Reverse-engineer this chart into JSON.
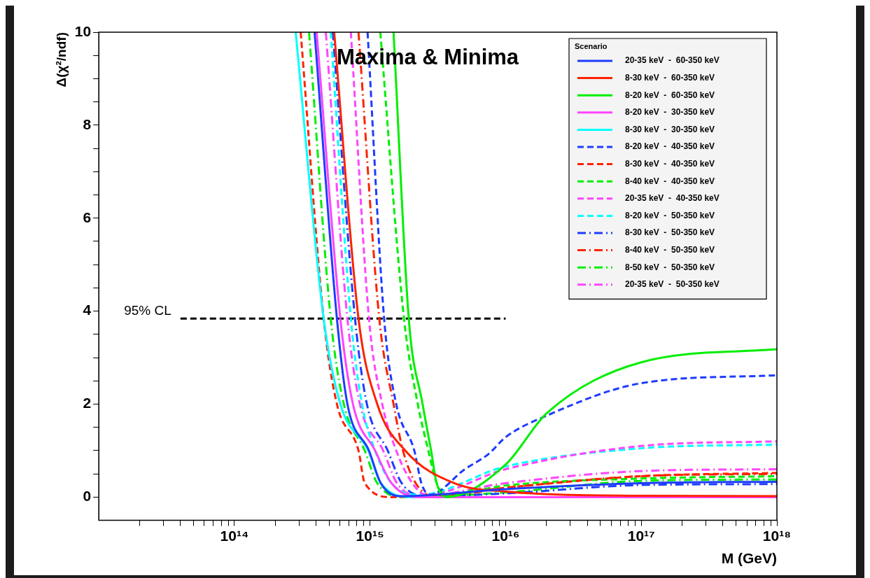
{
  "chart_data": {
    "type": "line",
    "title": "Maxima & Minima",
    "xlabel": "M (GeV)",
    "ylabel": "Δ(χ²/ndf)",
    "legend_title": "Scenario",
    "legend": "top right",
    "log": "x",
    "marker": "none",
    "xlim": [
      10000000000000.0,
      1e+18
    ],
    "xticks": [
      {
        "value": 20000000000000.0,
        "label": null
      },
      {
        "value": 30000000000000.0,
        "label": null
      },
      {
        "value": 40000000000000.0,
        "label": null
      },
      {
        "value": 50000000000000.0,
        "label": null
      },
      {
        "value": 60000000000000.0,
        "label": null
      },
      {
        "value": 70000000000000.0,
        "label": null
      },
      {
        "value": 80000000000000.0,
        "label": null
      },
      {
        "value": 90000000000000.0,
        "label": null
      },
      {
        "value": 100000000000000.0,
        "label": "10¹⁴"
      },
      {
        "value": 200000000000000.0,
        "label": null
      },
      {
        "value": 300000000000000.0,
        "label": null
      },
      {
        "value": 400000000000000.0,
        "label": null
      },
      {
        "value": 500000000000000.0,
        "label": null
      },
      {
        "value": 600000000000000.0,
        "label": null
      },
      {
        "value": 700000000000000.0,
        "label": null
      },
      {
        "value": 800000000000000.0,
        "label": null
      },
      {
        "value": 900000000000000.0,
        "label": null
      },
      {
        "value": 1000000000000000.0,
        "label": "10¹⁵"
      },
      {
        "value": 2000000000000000.0,
        "label": null
      },
      {
        "value": 3000000000000000.0,
        "label": null
      },
      {
        "value": 4000000000000000.0,
        "label": null
      },
      {
        "value": 5000000000000000.0,
        "label": null
      },
      {
        "value": 6000000000000000.0,
        "label": null
      },
      {
        "value": 7000000000000000.0,
        "label": null
      },
      {
        "value": 8000000000000000.0,
        "label": null
      },
      {
        "value": 9000000000000000.0,
        "label": null
      },
      {
        "value": 1e+16,
        "label": "10¹⁶"
      },
      {
        "value": 2e+16,
        "label": null
      },
      {
        "value": 3e+16,
        "label": null
      },
      {
        "value": 4e+16,
        "label": null
      },
      {
        "value": 5e+16,
        "label": null
      },
      {
        "value": 6e+16,
        "label": null
      },
      {
        "value": 7e+16,
        "label": null
      },
      {
        "value": 8e+16,
        "label": null
      },
      {
        "value": 9e+16,
        "label": null
      },
      {
        "value": 1e+17,
        "label": "10¹⁷"
      },
      {
        "value": 2e+17,
        "label": null
      },
      {
        "value": 3e+17,
        "label": null
      },
      {
        "value": 4e+17,
        "label": null
      },
      {
        "value": 5e+17,
        "label": null
      },
      {
        "value": 6e+17,
        "label": null
      },
      {
        "value": 7e+17,
        "label": null
      },
      {
        "value": 8e+17,
        "label": null
      },
      {
        "value": 9e+17,
        "label": null
      },
      {
        "value": 1e+18,
        "label": "10¹⁸"
      }
    ],
    "ylim": [
      -0.5,
      10
    ],
    "yticks": [
      0,
      {
        "value": 0.5,
        "label": null
      },
      {
        "value": 1,
        "label": null
      },
      {
        "value": 1.5,
        "label": null
      },
      2,
      {
        "value": 2.5,
        "label": null
      },
      {
        "value": 3,
        "label": null
      },
      {
        "value": 3.5,
        "label": null
      },
      4,
      {
        "value": 4.5,
        "label": null
      },
      {
        "value": 5,
        "label": null
      },
      {
        "value": 5.5,
        "label": null
      },
      6,
      {
        "value": 6.5,
        "label": null
      },
      {
        "value": 7,
        "label": null
      },
      {
        "value": 7.5,
        "label": null
      },
      8,
      {
        "value": 8.5,
        "label": null
      },
      {
        "value": 9,
        "label": null
      },
      {
        "value": 9.5,
        "label": null
      },
      10
    ],
    "annotations": [
      "95% CL"
    ],
    "series": [
      {
        "name": "20-35 keV  -  60-350 keV",
        "color": "#1e3cff",
        "line_style": "solid",
        "x": [
          390000000000000.0,
          570000000000000.0,
          681000000000000.0,
          982000000000000.0,
          1200000000000000.0,
          1710000000000000.0,
          1e+16,
          1e+17,
          1e+18
        ],
        "values": [
          10,
          3.84,
          2,
          1,
          0.3,
          0.02,
          0.17,
          0.3,
          0.33
        ]
      },
      {
        "name": "8-30 keV  -  60-350 keV",
        "color": "#ff2200",
        "line_style": "solid",
        "x": [
          544000000000000.0,
          822000000000000.0,
          1130000000000000.0,
          1820000000000000.0,
          4170000000000000.0,
          1e+16,
          1e+17,
          1e+18
        ],
        "values": [
          10,
          3.84,
          2,
          1,
          0.3,
          0.12,
          0.03,
          0.02
        ]
      },
      {
        "name": "8-20 keV  -  60-350 keV",
        "color": "#00ee00",
        "line_style": "solid",
        "x": [
          1490000000000000.0,
          1930000000000000.0,
          2440000000000000.0,
          2820000000000000.0,
          3100000000000000.0,
          3670000000000000.0,
          1e+16,
          2e+16,
          1e+17,
          1e+18
        ],
        "values": [
          10,
          3.84,
          2,
          1,
          0.3,
          0,
          0.7,
          1.8,
          2.9,
          3.18
        ]
      },
      {
        "name": "8-20 keV  -  30-350 keV",
        "color": "#ff44ff",
        "line_style": "solid",
        "x": [
          404000000000000.0,
          604000000000000.0,
          748000000000000.0,
          1090000000000000.0,
          1440000000000000.0,
          2300000000000000.0,
          1e+16,
          1e+18
        ],
        "values": [
          10,
          3.84,
          2,
          1,
          0.3,
          0,
          0,
          0
        ]
      },
      {
        "name": "8-30 keV  -  30-350 keV",
        "color": "#00ffff",
        "line_style": "solid",
        "x": [
          283000000000000.0,
          455000000000000.0,
          604000000000000.0,
          971000000000000.0,
          1200000000000000.0,
          2050000000000000.0,
          1e+16,
          1e+18
        ],
        "values": [
          10,
          3.84,
          2,
          1,
          0.3,
          0,
          0,
          0
        ]
      },
      {
        "name": "8-20 keV  -  40-350 keV",
        "color": "#1e3cff",
        "line_style": "dashed",
        "x": [
          959000000000000.0,
          1270000000000000.0,
          1560000000000000.0,
          2120000000000000.0,
          2390000000000000.0,
          2750000000000000.0,
          5000000000000000.0,
          7500000000000000.0,
          1e+16,
          2e+16,
          1e+17,
          1e+18
        ],
        "values": [
          10,
          3.84,
          2,
          1,
          0.3,
          0.05,
          0.6,
          0.93,
          1.29,
          1.75,
          2.45,
          2.62
        ]
      },
      {
        "name": "8-30 keV  -  40-350 keV",
        "color": "#ff2200",
        "line_style": "dashed",
        "x": [
          308000000000000.0,
          455000000000000.0,
          570000000000000.0,
          822000000000000.0,
          914000000000000.0,
          1440000000000000.0,
          3000000000000000.0,
          1e+16,
          1e+17,
          1e+18
        ],
        "values": [
          10,
          3.84,
          2,
          1,
          0.3,
          0,
          0.03,
          0.2,
          0.45,
          0.52
        ]
      },
      {
        "name": "8-40 keV  -  40-350 keV",
        "color": "#00ee00",
        "line_style": "dashed",
        "x": [
          1190000000000000.0,
          1780000000000000.0,
          2250000000000000.0,
          2690000000000000.0,
          3100000000000000.0,
          3670000000000000.0,
          1e+16,
          1e+17,
          1e+18
        ],
        "values": [
          10,
          3.84,
          2,
          1,
          0.3,
          0.05,
          0.25,
          0.4,
          0.45
        ]
      },
      {
        "name": "20-35 keV  -  40-350 keV",
        "color": "#ff44ff",
        "line_style": "dashed",
        "x": [
          722000000000000.0,
          982000000000000.0,
          1230000000000000.0,
          1560000000000000.0,
          2050000000000000.0,
          2590000000000000.0,
          1e+16,
          1e+17,
          1e+18
        ],
        "values": [
          10,
          3.84,
          2,
          1,
          0.3,
          0.05,
          0.6,
          1.1,
          1.2
        ]
      },
      {
        "name": "8-20 keV  -  50-350 keV",
        "color": "#00ffff",
        "line_style": "dashed",
        "x": [
          513000000000000.0,
          722000000000000.0,
          872000000000000.0,
          1090000000000000.0,
          1440000000000000.0,
          2300000000000000.0,
          1e+16,
          1e+17,
          1e+18
        ],
        "values": [
          10,
          3.84,
          2,
          1,
          0.3,
          0.05,
          0.66,
          1.05,
          1.13
        ]
      },
      {
        "name": "8-30 keV  -  50-350 keV",
        "color": "#1e3cff",
        "line_style": "dashdot",
        "x": [
          531000000000000.0,
          775000000000000.0,
          948000000000000.0,
          1350000000000000.0,
          1710000000000000.0,
          2590000000000000.0,
          1e+16,
          1e+17,
          1e+18
        ],
        "values": [
          10,
          3.84,
          2,
          1,
          0.3,
          0.02,
          0.08,
          0.26,
          0.28
        ]
      },
      {
        "name": "8-40 keV  -  50-350 keV",
        "color": "#ff2200",
        "line_style": "dashdot",
        "x": [
          822000000000000.0,
          1170000000000000.0,
          1490000000000000.0,
          1750000000000000.0,
          2170000000000000.0,
          3100000000000000.0,
          1e+16,
          1e+17,
          1e+18
        ],
        "values": [
          10,
          3.84,
          2,
          1,
          0.3,
          0,
          0.2,
          0.45,
          0.5
        ]
      },
      {
        "name": "8-50 keV  -  50-350 keV",
        "color": "#00ee00",
        "line_style": "dashdot",
        "x": [
          355000000000000.0,
          513000000000000.0,
          641000000000000.0,
          914000000000000.0,
          1130000000000000.0,
          1820000000000000.0,
          1e+16,
          1e+17,
          1e+18
        ],
        "values": [
          10,
          3.84,
          2,
          1,
          0.3,
          0,
          0.1,
          0.35,
          0.38
        ]
      },
      {
        "name": "20-35 keV  -  50-350 keV",
        "color": "#ff44ff",
        "line_style": "dashdot",
        "x": [
          472000000000000.0,
          681000000000000.0,
          842000000000000.0,
          1250000000000000.0,
          1580000000000000.0,
          2300000000000000.0,
          1e+16,
          1e+17,
          1e+18
        ],
        "values": [
          10,
          3.84,
          2,
          1,
          0.3,
          0.02,
          0.3,
          0.56,
          0.6
        ]
      },
      {
        "color": "#000000",
        "line_style": "dashed",
        "x": [
          40000000000000.0,
          1e+16
        ],
        "values": [
          3.84,
          3.84
        ]
      }
    ]
  }
}
